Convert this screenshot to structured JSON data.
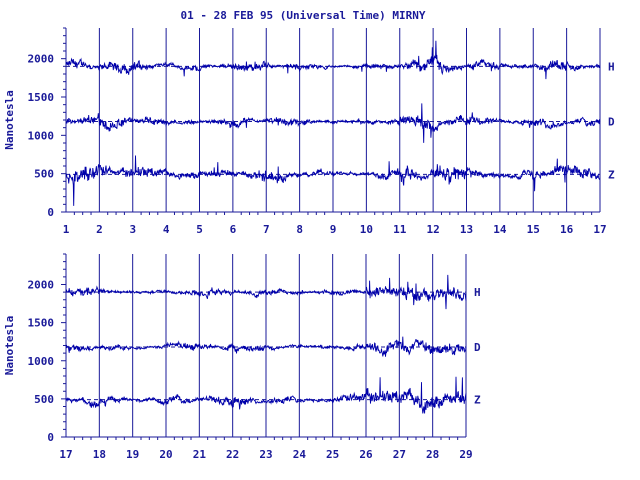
{
  "title": "01 - 28 FEB 95 (Universal Time) MIRNY",
  "colors": {
    "ink": "#1a1a99",
    "trace": "#0000aa",
    "background": "#ffffff"
  },
  "chart_data": [
    {
      "type": "line",
      "panel": "top",
      "ylabel": "Nanotesla",
      "ylim": [
        0,
        2400
      ],
      "yticks": [
        0,
        500,
        1000,
        1500,
        2000
      ],
      "xlim": [
        1,
        17
      ],
      "xticks": [
        1,
        2,
        3,
        4,
        5,
        6,
        7,
        8,
        9,
        10,
        11,
        12,
        13,
        14,
        15,
        16,
        17
      ],
      "grid": "vertical day lines",
      "series": [
        {
          "name": "H",
          "baseline": 1900
        },
        {
          "name": "D",
          "baseline": 1180
        },
        {
          "name": "Z",
          "baseline": 490
        }
      ]
    },
    {
      "type": "line",
      "panel": "bottom",
      "ylabel": "Nanotesla",
      "ylim": [
        0,
        2400
      ],
      "yticks": [
        0,
        500,
        1000,
        1500,
        2000
      ],
      "xlim": [
        17,
        29
      ],
      "xticks": [
        17,
        18,
        19,
        20,
        21,
        22,
        23,
        24,
        25,
        26,
        27,
        28,
        29
      ],
      "grid": "vertical day lines",
      "series": [
        {
          "name": "H",
          "baseline": 1900
        },
        {
          "name": "D",
          "baseline": 1180
        },
        {
          "name": "Z",
          "baseline": 490
        }
      ]
    }
  ]
}
